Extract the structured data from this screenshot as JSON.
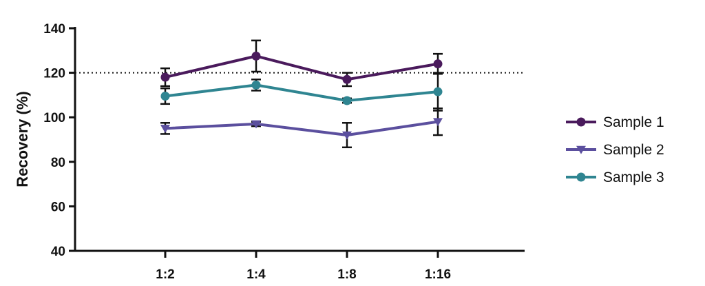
{
  "chart_data": {
    "type": "line",
    "title": "",
    "xlabel": "",
    "ylabel": "Recovery (%)",
    "categories": [
      "1:2",
      "1:4",
      "1:8",
      "1:16"
    ],
    "ylim": [
      40,
      140
    ],
    "yticks": [
      40,
      60,
      80,
      100,
      120,
      140
    ],
    "grid": false,
    "legend_position": "right",
    "reference_line": {
      "y": 120,
      "style": "dotted"
    },
    "series": [
      {
        "name": "Sample 1",
        "marker": "circle",
        "color": "#4a1a5c",
        "values": [
          118,
          127.5,
          117,
          124
        ],
        "errors": [
          4,
          7,
          3,
          4.5
        ]
      },
      {
        "name": "Sample 2",
        "marker": "triangle-down",
        "color": "#5b4f9e",
        "values": [
          95,
          97,
          92,
          98
        ],
        "errors": [
          2.5,
          1,
          5.5,
          6
        ]
      },
      {
        "name": "Sample 3",
        "marker": "circle",
        "color": "#2f8591",
        "values": [
          109.5,
          114.5,
          107.5,
          111.5
        ],
        "errors": [
          3.5,
          2.5,
          1,
          8.5
        ]
      }
    ]
  }
}
